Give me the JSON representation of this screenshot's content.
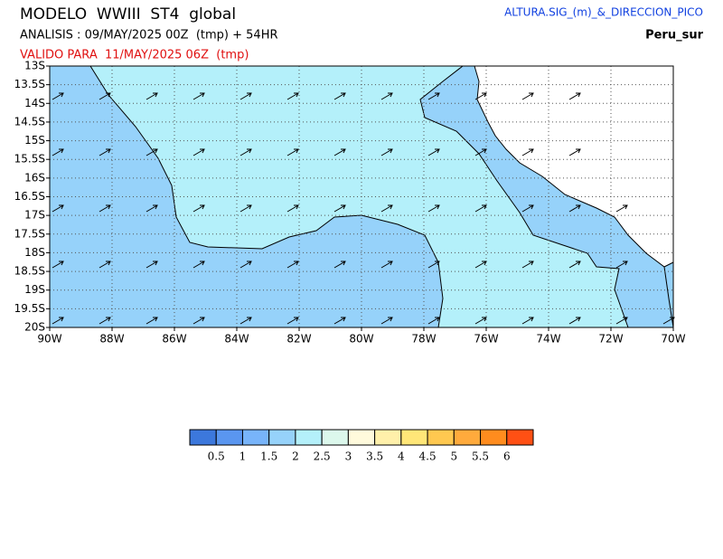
{
  "header": {
    "title": "MODELO  WWIII  ST4  global",
    "analysis": "ANALISIS : 09/MAY/2025 00Z  (tmp) + 54HR",
    "valid": "VALIDO PARA  11/MAY/2025 06Z  (tmp)",
    "variable": "ALTURA.SIG_(m)_&_DIRECCION_PICO",
    "region": "Peru_sur"
  },
  "map": {
    "lat_labels": [
      "13S",
      "13.5S",
      "14S",
      "14.5S",
      "15S",
      "15.5S",
      "16S",
      "16.5S",
      "17S",
      "17.5S",
      "18S",
      "18.5S",
      "19S",
      "19.5S",
      "20S"
    ],
    "lon_labels": [
      "90W",
      "88W",
      "86W",
      "84W",
      "82W",
      "80W",
      "78W",
      "76W",
      "74W",
      "72W",
      "70W"
    ]
  },
  "colorbar": {
    "colors": [
      "#3c78dc",
      "#5a96f0",
      "#78b4fa",
      "#96d2fa",
      "#b4f0fa",
      "#dcf8ec",
      "#fffadc",
      "#fff0aa",
      "#ffe678",
      "#ffc850",
      "#ffaa3c",
      "#ff8c1e",
      "#ff5014"
    ],
    "labels": [
      "0.5",
      "1",
      "1.5",
      "2",
      "2.5",
      "3",
      "3.5",
      "4",
      "4.5",
      "5",
      "5.5",
      "6"
    ]
  }
}
